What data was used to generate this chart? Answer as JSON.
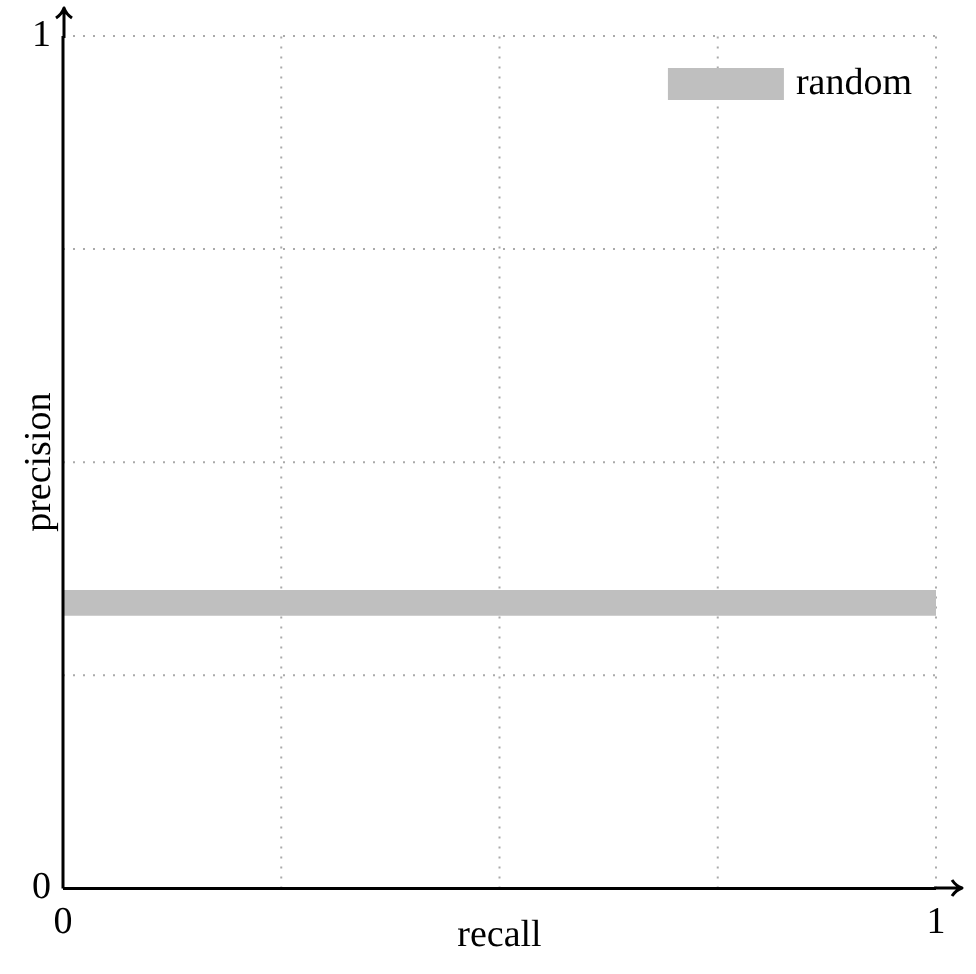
{
  "chart_data": {
    "type": "line",
    "xlabel": "recall",
    "ylabel": "precision",
    "bands": [
      {
        "axis": "y",
        "from": 0.32,
        "to": 0.35,
        "label": "random",
        "color": "#bfbfbf"
      }
    ],
    "xlim": [
      0,
      1
    ],
    "ylim": [
      0,
      1
    ],
    "xticks": [
      0,
      {
        "value": 0.25,
        "label": null
      },
      {
        "value": 0.5,
        "label": null
      },
      {
        "value": 0.75,
        "label": null
      },
      1
    ],
    "yticks": [
      0,
      {
        "value": 0.25,
        "label": null
      },
      {
        "value": 0.5,
        "label": null
      },
      {
        "value": 0.75,
        "label": null
      },
      1
    ],
    "grid": true,
    "legend": "top right"
  }
}
